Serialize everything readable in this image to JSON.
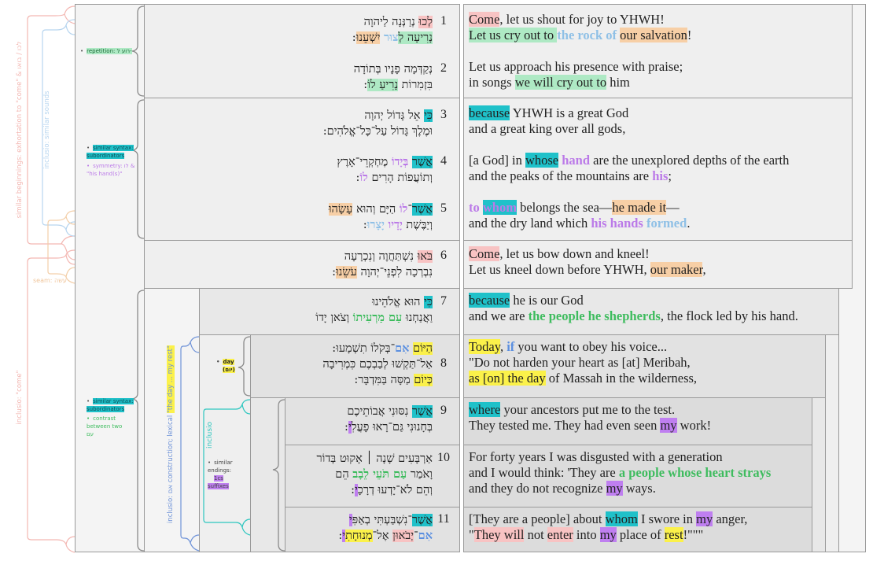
{
  "title": "Psalm 95:1-11 structural analysis",
  "colors": {
    "pink": "#f8c3c3",
    "green": "#aee9c4",
    "orange": "#f7cfa6",
    "teal": "#1fc1c9",
    "yellow": "#fbf14a",
    "purple": "#bf7ff0",
    "light_blue_text": "#8fc0e6",
    "purple_text": "#bb7ae8",
    "green_text": "#3ebc5e",
    "blue_text": "#5b8fe0"
  },
  "left_labels": {
    "similar_beginnings": "similar beginnings: exhortation to \"come\" & לכו / בואו",
    "inclusio_sounds": "inclusio: similar sounds",
    "seam": "seam: עשה",
    "inclusio_come": "inclusio: \"come\"",
    "inclusio_construction_a": "inclusio: אם construction; lexical ",
    "inclusio_construction_b": "\"the day ... my rest\"",
    "inclusio": "inclusio"
  },
  "notes": {
    "repetition": "repetition: רוע ל-",
    "similar_syntax_1": "similar syntax: subordinators",
    "symmetry": "symmetry: לו & \"his hand(s)\"",
    "similar_syntax_2": "similar syntax: subordinators",
    "contrast": "contrast between two עם",
    "day_a": "day",
    "day_b": "(יום)",
    "similar_endings": "similar endings:",
    "suffixes": "1cs suffixes"
  },
  "verses": [
    {
      "num": "1",
      "heb": [
        [
          "לְכוּ",
          "pink"
        ],
        [
          " נְרַנְּנָה לַיהוָה"
        ],
        [
          "\n"
        ],
        [
          "נָרִיעָה לְ",
          "green"
        ],
        [
          "צוּר",
          "blue"
        ],
        [
          " "
        ],
        [
          "יִשְׁעֵנוּ",
          "orange"
        ],
        [
          ":"
        ]
      ],
      "eng": [
        [
          "Come",
          "pink"
        ],
        [
          ", let us shout for joy to YHWH!"
        ],
        [
          "\n"
        ],
        [
          "Let us cry out to ",
          "green"
        ],
        [
          "the rock of",
          "blue"
        ],
        [
          " "
        ],
        [
          "our salvation",
          "orange"
        ],
        [
          "!"
        ]
      ]
    },
    {
      "num": "2",
      "heb": [
        [
          "נְקַדְּמָה פָנָיו בְּתוֹדָה"
        ],
        [
          "\n"
        ],
        [
          "בִּזְמִרוֹת "
        ],
        [
          "נָרִיעַ לוֹ",
          "green"
        ],
        [
          ":"
        ]
      ],
      "eng": [
        [
          "Let us approach his presence with praise;"
        ],
        [
          "\n"
        ],
        [
          "in songs "
        ],
        [
          "we will cry out to",
          "green"
        ],
        [
          " him"
        ]
      ]
    },
    {
      "num": "3",
      "heb": [
        [
          "כִּי",
          "teal"
        ],
        [
          " אֵל גָּדוֹל יְהוָה"
        ],
        [
          "\n"
        ],
        [
          "וּמֶלֶךְ גָּדוֹל עַל־כָּל־אֱלֹהִים:"
        ]
      ],
      "eng": [
        [
          "because",
          "teal"
        ],
        [
          " YHWH is a great God"
        ],
        [
          "\n"
        ],
        [
          "and a great king over all gods,"
        ]
      ]
    },
    {
      "num": "4",
      "heb": [
        [
          "אֲשֶׁר",
          "teal"
        ],
        [
          " "
        ],
        [
          "בְּיָדוֹ",
          "purpletext"
        ],
        [
          " מֶחְקְרֵי־אָרֶץ"
        ],
        [
          "\n"
        ],
        [
          "וְתוֹעֲפוֹת הָרִים "
        ],
        [
          "לוֹ",
          "purpletext"
        ],
        [
          ":"
        ]
      ],
      "eng": [
        [
          "[a God] in "
        ],
        [
          "whose",
          "teal"
        ],
        [
          " "
        ],
        [
          "hand",
          "purpletext"
        ],
        [
          " are the unexplored depths of the earth"
        ],
        [
          "\n"
        ],
        [
          "and the peaks of the mountains are "
        ],
        [
          "his",
          "purpletext"
        ],
        [
          ";"
        ]
      ]
    },
    {
      "num": "5",
      "heb": [
        [
          "אֲשֶׁר",
          "teal"
        ],
        [
          "־"
        ],
        [
          "לוֹ",
          "purpletext"
        ],
        [
          " הַיָּם וְהוּא "
        ],
        [
          "עָשָׂהוּ",
          "orange"
        ],
        [
          "\n"
        ],
        [
          "וְיַבֶּשֶׁת "
        ],
        [
          "יָדָיו",
          "purpletext"
        ],
        [
          " "
        ],
        [
          "יָצָרוּ",
          "blue"
        ],
        [
          ":"
        ]
      ],
      "eng": [
        [
          "to ",
          "purpletext"
        ],
        [
          "whom",
          "tealpurple"
        ],
        [
          " belongs the sea—"
        ],
        [
          "he made it",
          "orange"
        ],
        [
          "—"
        ],
        [
          "\n"
        ],
        [
          "and the dry land which "
        ],
        [
          "his hands",
          "purpletext"
        ],
        [
          " "
        ],
        [
          "formed",
          "blue"
        ],
        [
          "."
        ]
      ]
    },
    {
      "num": "6",
      "heb": [
        [
          "בֹּאוּ",
          "pink"
        ],
        [
          " נִשְׁתַּחֲוֶה וְנִכְרָעָה"
        ],
        [
          "\n"
        ],
        [
          "נִבְרְכָה לִפְנֵי־יְהוָה "
        ],
        [
          "עֹשֵׂנוּ",
          "orange"
        ],
        [
          ":"
        ]
      ],
      "eng": [
        [
          "Come",
          "pink"
        ],
        [
          ", let us bow down and kneel!"
        ],
        [
          "\n"
        ],
        [
          "Let us kneel down before YHWH, "
        ],
        [
          "our maker",
          "orange"
        ],
        [
          ","
        ]
      ]
    },
    {
      "num": "7",
      "heb": [
        [
          "כִּי",
          "teal"
        ],
        [
          " הוּא אֱלֹהֵינוּ"
        ],
        [
          "\n"
        ],
        [
          "וַאֲנַחְנוּ "
        ],
        [
          "עַם מַרְעִיתוֹ",
          "greentext"
        ],
        [
          " וְצֹאן יָדוֹ"
        ]
      ],
      "eng": [
        [
          "because",
          "teal"
        ],
        [
          " he is our God"
        ],
        [
          "\n"
        ],
        [
          "and we are "
        ],
        [
          "the people he shepherds",
          "greentext"
        ],
        [
          ", the flock led by his hand."
        ]
      ]
    },
    {
      "num": "8",
      "heb": [
        [
          "הַיּוֹם",
          "yellow"
        ],
        [
          " "
        ],
        [
          "אִם",
          "bluetext"
        ],
        [
          "־בְּקֹלוֹ תִשְׁמָעוּ:"
        ],
        [
          "\n"
        ],
        [
          "אַל־תַּקְשׁוּ לְבַבְכֶם כִּמְרִיבָה"
        ],
        [
          "\n"
        ],
        [
          "כְּיוֹם",
          "yellow"
        ],
        [
          " מַסָּה בַּמִּדְבָּר:"
        ]
      ],
      "eng": [
        [
          "Today",
          "yellow"
        ],
        [
          ", "
        ],
        [
          "if",
          "bluetext"
        ],
        [
          " you want to obey his voice..."
        ],
        [
          "\n"
        ],
        [
          "\"Do not harden your heart as [at] Meribah,"
        ],
        [
          "\n"
        ],
        [
          "as [on] the day",
          "yellow"
        ],
        [
          " of Massah in the wilderness,"
        ]
      ]
    },
    {
      "num": "9",
      "heb": [
        [
          "אֲשֶׁר",
          "teal"
        ],
        [
          " נִסּוּנִי אֲבוֹתֵיכֶם"
        ],
        [
          "\n"
        ],
        [
          "בְּחָנוּנִי גַּם־רָאוּ פָעֳלִ"
        ],
        [
          "י",
          "purple"
        ],
        [
          ":"
        ]
      ],
      "eng": [
        [
          "where",
          "teal"
        ],
        [
          " your ancestors put me to the test."
        ],
        [
          "\n"
        ],
        [
          "They tested me. They had even seen "
        ],
        [
          "my",
          "purple"
        ],
        [
          " work!"
        ]
      ]
    },
    {
      "num": "10",
      "heb": [
        [
          "אַרְבָּעִים שָׁנָה ׀ אָקוּט בְּדוֹר"
        ],
        [
          "\n"
        ],
        [
          "וָאֹמַר "
        ],
        [
          "עַם תֹּעֵי לֵבָב",
          "greentext"
        ],
        [
          " הֵם"
        ],
        [
          "\n"
        ],
        [
          "וְהֵם לֹא־יָדְעוּ דְרָכָ"
        ],
        [
          "י",
          "purple"
        ],
        [
          ":"
        ]
      ],
      "eng": [
        [
          "For forty years I was disgusted with a generation"
        ],
        [
          "\n"
        ],
        [
          "and I would think: 'They are "
        ],
        [
          "a people whose heart strays",
          "greentext"
        ],
        [
          "\n"
        ],
        [
          "and they do not recognize "
        ],
        [
          "my",
          "purple"
        ],
        [
          " ways."
        ]
      ]
    },
    {
      "num": "11",
      "heb": [
        [
          "אֲשֶׁר",
          "teal"
        ],
        [
          "־נִשְׁבַּעְתִּי בְאַפִּ"
        ],
        [
          "י",
          "purple"
        ],
        [
          "\n"
        ],
        [
          "אִם",
          "bluetext"
        ],
        [
          "־"
        ],
        [
          "יְבֹאוּן",
          "pink"
        ],
        [
          " אֶל־"
        ],
        [
          "מְנוּחָתִ",
          "yellow"
        ],
        [
          "י",
          "purple"
        ],
        [
          ":"
        ]
      ],
      "eng": [
        [
          "[They are a people] about "
        ],
        [
          "whom",
          "teal"
        ],
        [
          " I swore in "
        ],
        [
          "my",
          "purple"
        ],
        [
          " anger,"
        ],
        [
          "\n"
        ],
        [
          "\""
        ],
        [
          "They will",
          "pink"
        ],
        [
          " not "
        ],
        [
          "enter",
          "pink"
        ],
        [
          " into "
        ],
        [
          "my",
          "purple"
        ],
        [
          " place of "
        ],
        [
          "rest",
          "yellow"
        ],
        [
          "!\"\"\""
        ]
      ]
    }
  ]
}
